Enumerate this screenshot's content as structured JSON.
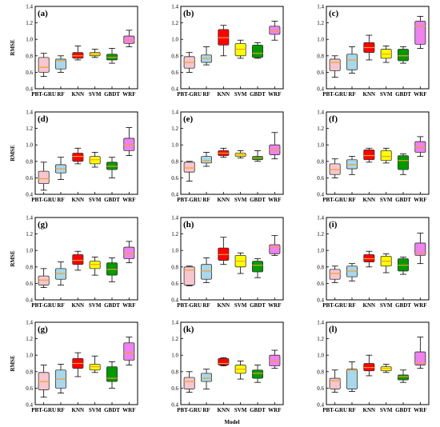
{
  "chart_data": {
    "type": "box",
    "grid": false,
    "categories": [
      "PBT-GRU",
      "RF",
      "KNN",
      "SVM",
      "GBDT",
      "WRF"
    ],
    "colors": [
      "#f7c6cf",
      "#a8d8ea",
      "#ff0000",
      "#ffff00",
      "#009900",
      "#ee82ee"
    ],
    "median_color": "#f0a030",
    "ylabel": "RMSE",
    "xlabel": "Model",
    "ylim": [
      0.4,
      1.4
    ],
    "yticks": [
      "0.4",
      "0.6",
      "0.8",
      "1.0",
      "1.2",
      "1.4"
    ],
    "panels": [
      {
        "label": "(a)",
        "boxes": [
          [
            0.55,
            0.6,
            0.66,
            0.78,
            0.83
          ],
          [
            0.6,
            0.64,
            0.74,
            0.76,
            0.8
          ],
          [
            0.75,
            0.77,
            0.8,
            0.84,
            0.92
          ],
          [
            0.78,
            0.8,
            0.82,
            0.84,
            0.88
          ],
          [
            0.71,
            0.75,
            0.78,
            0.82,
            0.89
          ],
          [
            0.91,
            0.95,
            0.99,
            1.04,
            1.11
          ]
        ]
      },
      {
        "label": "(b)",
        "boxes": [
          [
            0.6,
            0.65,
            0.72,
            0.79,
            0.84
          ],
          [
            0.69,
            0.72,
            0.77,
            0.81,
            0.91
          ],
          [
            0.8,
            0.93,
            1.02,
            1.12,
            1.17
          ],
          [
            0.77,
            0.8,
            0.88,
            0.95,
            0.99
          ],
          [
            0.77,
            0.78,
            0.83,
            0.93,
            0.96
          ],
          [
            0.99,
            1.06,
            1.1,
            1.16,
            1.22
          ]
        ]
      },
      {
        "label": "(c)",
        "boxes": [
          [
            0.54,
            0.62,
            0.72,
            0.76,
            0.8
          ],
          [
            0.59,
            0.63,
            0.75,
            0.82,
            0.91
          ],
          [
            0.75,
            0.84,
            0.9,
            0.96,
            1.05
          ],
          [
            0.72,
            0.77,
            0.82,
            0.88,
            0.92
          ],
          [
            0.71,
            0.74,
            0.8,
            0.88,
            0.91
          ],
          [
            0.89,
            0.94,
            1.16,
            1.22,
            1.28
          ]
        ]
      },
      {
        "label": "(d)",
        "boxes": [
          [
            0.45,
            0.53,
            0.59,
            0.68,
            0.79
          ],
          [
            0.58,
            0.66,
            0.71,
            0.76,
            0.85
          ],
          [
            0.77,
            0.8,
            0.86,
            0.9,
            0.96
          ],
          [
            0.73,
            0.77,
            0.82,
            0.86,
            0.91
          ],
          [
            0.6,
            0.7,
            0.74,
            0.79,
            0.85
          ],
          [
            0.87,
            0.93,
            1.0,
            1.08,
            1.21
          ]
        ]
      },
      {
        "label": "(e)",
        "boxes": [
          [
            0.56,
            0.67,
            0.72,
            0.79,
            0.8
          ],
          [
            0.74,
            0.78,
            0.81,
            0.86,
            0.91
          ],
          [
            0.85,
            0.87,
            0.9,
            0.93,
            0.96
          ],
          [
            0.84,
            0.86,
            0.88,
            0.9,
            0.93
          ],
          [
            0.8,
            0.82,
            0.84,
            0.86,
            0.93
          ],
          [
            0.83,
            0.88,
            0.94,
            1.0,
            1.15
          ]
        ]
      },
      {
        "label": "(f)",
        "boxes": [
          [
            0.6,
            0.64,
            0.7,
            0.77,
            0.83
          ],
          [
            0.64,
            0.71,
            0.76,
            0.82,
            0.86
          ],
          [
            0.79,
            0.82,
            0.87,
            0.94,
            0.96
          ],
          [
            0.78,
            0.81,
            0.86,
            0.93,
            0.96
          ],
          [
            0.64,
            0.7,
            0.81,
            0.87,
            0.89
          ],
          [
            0.86,
            0.91,
            0.97,
            1.04,
            1.1
          ]
        ]
      },
      {
        "label": "(g)",
        "boxes": [
          [
            0.55,
            0.58,
            0.64,
            0.69,
            0.78
          ],
          [
            0.58,
            0.65,
            0.72,
            0.78,
            0.86
          ],
          [
            0.76,
            0.83,
            0.88,
            0.95,
            0.99
          ],
          [
            0.7,
            0.78,
            0.83,
            0.87,
            0.92
          ],
          [
            0.62,
            0.7,
            0.77,
            0.85,
            0.91
          ],
          [
            0.85,
            0.9,
            0.96,
            1.04,
            1.11
          ]
        ]
      },
      {
        "label": "(h)",
        "boxes": [
          [
            0.57,
            0.58,
            0.76,
            0.8,
            0.81
          ],
          [
            0.61,
            0.65,
            0.75,
            0.83,
            0.91
          ],
          [
            0.83,
            0.88,
            0.95,
            1.03,
            1.16
          ],
          [
            0.72,
            0.8,
            0.87,
            0.94,
            0.97
          ],
          [
            0.67,
            0.74,
            0.82,
            0.87,
            0.9
          ],
          [
            0.94,
            0.96,
            1.04,
            1.07,
            1.18
          ]
        ]
      },
      {
        "label": "(i)",
        "boxes": [
          [
            0.61,
            0.65,
            0.72,
            0.77,
            0.81
          ],
          [
            0.63,
            0.68,
            0.75,
            0.81,
            0.84
          ],
          [
            0.8,
            0.86,
            0.9,
            0.95,
            0.99
          ],
          [
            0.73,
            0.81,
            0.87,
            0.93,
            0.96
          ],
          [
            0.71,
            0.75,
            0.82,
            0.9,
            0.92
          ],
          [
            0.84,
            0.94,
            0.96,
            1.09,
            1.21
          ]
        ]
      },
      {
        "label": "(g)",
        "boxes": [
          [
            0.49,
            0.58,
            0.68,
            0.79,
            0.88
          ],
          [
            0.54,
            0.6,
            0.71,
            0.82,
            0.89
          ],
          [
            0.74,
            0.84,
            0.9,
            0.96,
            1.03
          ],
          [
            0.79,
            0.82,
            0.86,
            0.89,
            0.99
          ],
          [
            0.6,
            0.68,
            0.72,
            0.86,
            0.92
          ],
          [
            0.88,
            0.94,
            1.03,
            1.15,
            1.22
          ]
        ]
      },
      {
        "label": "(k)",
        "boxes": [
          [
            0.55,
            0.59,
            0.68,
            0.73,
            0.8
          ],
          [
            0.59,
            0.68,
            0.72,
            0.78,
            0.83
          ],
          [
            0.87,
            0.88,
            0.9,
            0.96,
            0.97
          ],
          [
            0.71,
            0.78,
            0.83,
            0.88,
            0.93
          ],
          [
            0.67,
            0.72,
            0.78,
            0.82,
            0.88
          ],
          [
            0.84,
            0.87,
            0.93,
            1.0,
            1.06
          ]
        ]
      },
      {
        "label": "(l)",
        "boxes": [
          [
            0.55,
            0.59,
            0.69,
            0.72,
            0.82
          ],
          [
            0.56,
            0.59,
            0.82,
            0.83,
            0.92
          ],
          [
            0.75,
            0.81,
            0.85,
            0.9,
            1.0
          ],
          [
            0.79,
            0.81,
            0.84,
            0.86,
            0.89
          ],
          [
            0.67,
            0.7,
            0.74,
            0.76,
            0.82
          ],
          [
            0.84,
            0.88,
            0.9,
            1.04,
            1.22
          ]
        ]
      }
    ]
  }
}
